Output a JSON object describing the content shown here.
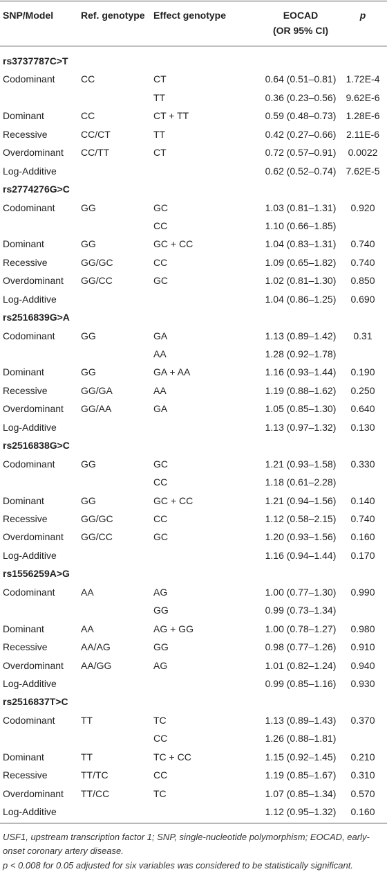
{
  "header": {
    "snp_model": "SNP/Model",
    "ref_genotype": "Ref. genotype",
    "effect_genotype": "Effect genotype",
    "eocad": [
      "EOCAD",
      "(OR 95% CI)"
    ],
    "p": "p"
  },
  "groups": [
    {
      "snp": "rs3737787C>T",
      "rows": [
        [
          "Codominant",
          "CC",
          "CT",
          "0.64 (0.51–0.81)",
          "1.72E-4"
        ],
        [
          null,
          null,
          "TT",
          "0.36 (0.23–0.56)",
          "9.62E-6"
        ],
        [
          "Dominant",
          "CC",
          "CT + TT",
          "0.59 (0.48–0.73)",
          "1.28E-6"
        ],
        [
          "Recessive",
          "CC/CT",
          "TT",
          "0.42 (0.27–0.66)",
          "2.11E-6"
        ],
        [
          "Overdominant",
          "CC/TT",
          "CT",
          "0.72 (0.57–0.91)",
          "0.0022"
        ],
        [
          "Log-Additive",
          null,
          null,
          "0.62 (0.52–0.74)",
          "7.62E-5"
        ]
      ]
    },
    {
      "snp": "rs2774276G>C",
      "rows": [
        [
          "Codominant",
          "GG",
          "GC",
          "1.03 (0.81–1.31)",
          "0.920"
        ],
        [
          null,
          null,
          "CC",
          "1.10 (0.66–1.85)",
          null
        ],
        [
          "Dominant",
          "GG",
          "GC + CC",
          "1.04 (0.83–1.31)",
          "0.740"
        ],
        [
          "Recessive",
          "GG/GC",
          "CC",
          "1.09 (0.65–1.82)",
          "0.740"
        ],
        [
          "Overdominant",
          "GG/CC",
          "GC",
          "1.02 (0.81–1.30)",
          "0.850"
        ],
        [
          "Log-Additive",
          null,
          null,
          "1.04 (0.86–1.25)",
          "0.690"
        ]
      ]
    },
    {
      "snp": "rs2516839G>A",
      "rows": [
        [
          "Codominant",
          "GG",
          "GA",
          "1.13 (0.89–1.42)",
          "0.31"
        ],
        [
          null,
          null,
          "AA",
          "1.28 (0.92–1.78)",
          null
        ],
        [
          "Dominant",
          "GG",
          "GA + AA",
          "1.16 (0.93–1.44)",
          "0.190"
        ],
        [
          "Recessive",
          "GG/GA",
          "AA",
          "1.19 (0.88–1.62)",
          "0.250"
        ],
        [
          "Overdominant",
          "GG/AA",
          "GA",
          "1.05 (0.85–1.30)",
          "0.640"
        ],
        [
          "Log-Additive",
          null,
          null,
          "1.13 (0.97–1.32)",
          "0.130"
        ]
      ]
    },
    {
      "snp": "rs2516838G>C",
      "rows": [
        [
          "Codominant",
          "GG",
          "GC",
          "1.21 (0.93–1.58)",
          "0.330"
        ],
        [
          null,
          null,
          "CC",
          "1.18 (0.61–2.28)",
          null
        ],
        [
          "Dominant",
          "GG",
          "GC + CC",
          "1.21 (0.94–1.56)",
          "0.140"
        ],
        [
          "Recessive",
          "GG/GC",
          "CC",
          "1.12 (0.58–2.15)",
          "0.740"
        ],
        [
          "Overdominant",
          "GG/CC",
          "GC",
          "1.20 (0.93–1.56)",
          "0.160"
        ],
        [
          "Log-Additive",
          null,
          null,
          "1.16 (0.94–1.44)",
          "0.170"
        ]
      ]
    },
    {
      "snp": "rs1556259A>G",
      "rows": [
        [
          "Codominant",
          "AA",
          "AG",
          "1.00 (0.77–1.30)",
          "0.990"
        ],
        [
          null,
          null,
          "GG",
          "0.99 (0.73–1.34)",
          null
        ],
        [
          "Dominant",
          "AA",
          "AG + GG",
          "1.00 (0.78–1.27)",
          "0.980"
        ],
        [
          "Recessive",
          "AA/AG",
          "GG",
          "0.98 (0.77–1.26)",
          "0.910"
        ],
        [
          "Overdominant",
          "AA/GG",
          "AG",
          "1.01 (0.82–1.24)",
          "0.940"
        ],
        [
          "Log-Additive",
          null,
          null,
          "0.99 (0.85–1.16)",
          "0.930"
        ]
      ]
    },
    {
      "snp": "rs2516837T>C",
      "rows": [
        [
          "Codominant",
          "TT",
          "TC",
          "1.13 (0.89–1.43)",
          "0.370"
        ],
        [
          null,
          null,
          "CC",
          "1.26 (0.88–1.81)",
          null
        ],
        [
          "Dominant",
          "TT",
          "TC + CC",
          "1.15 (0.92–1.45)",
          "0.210"
        ],
        [
          "Recessive",
          "TT/TC",
          "CC",
          "1.19 (0.85–1.67)",
          "0.310"
        ],
        [
          "Overdominant",
          "TT/CC",
          "TC",
          "1.07 (0.85–1.34)",
          "0.570"
        ],
        [
          "Log-Additive",
          null,
          null,
          "1.12 (0.95–1.32)",
          "0.160"
        ]
      ]
    }
  ],
  "footnotes": [
    "USF1, upstream transcription factor 1; SNP, single-nucleotide polymorphism; EOCAD, early-onset coronary artery disease.",
    "p < 0.008 for 0.05 adjusted for six variables was considered to be statistically significant."
  ]
}
